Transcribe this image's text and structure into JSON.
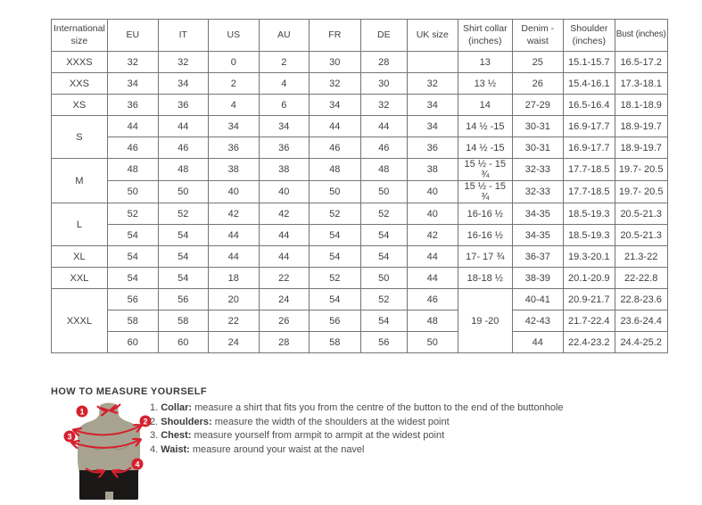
{
  "size_chart": {
    "columns": [
      "International size",
      "EU",
      "IT",
      "US",
      "AU",
      "FR",
      "DE",
      "UK size",
      "Shirt collar (inches)",
      "Denim - waist",
      "Shoulder (inches)",
      "Bust (inches)"
    ],
    "groups": [
      {
        "size": "XXXS",
        "rows": [
          [
            "32",
            "32",
            "0",
            "2",
            "30",
            "28",
            "",
            "13",
            "25",
            "15.1-15.7",
            "16.5-17.2"
          ]
        ]
      },
      {
        "size": "XXS",
        "rows": [
          [
            "34",
            "34",
            "2",
            "4",
            "32",
            "30",
            "32",
            "13 ½",
            "26",
            "15.4-16.1",
            "17.3-18.1"
          ]
        ]
      },
      {
        "size": "XS",
        "rows": [
          [
            "36",
            "36",
            "4",
            "6",
            "34",
            "32",
            "34",
            "14",
            "27-29",
            "16.5-16.4",
            "18.1-18.9"
          ]
        ]
      },
      {
        "size": "S",
        "rows": [
          [
            "44",
            "44",
            "34",
            "34",
            "44",
            "44",
            "34",
            "14 ½ -15",
            "30-31",
            "16.9-17.7",
            "18.9-19.7"
          ],
          [
            "46",
            "46",
            "36",
            "36",
            "46",
            "46",
            "36",
            "14 ½ -15",
            "30-31",
            "16.9-17.7",
            "18.9-19.7"
          ]
        ]
      },
      {
        "size": "M",
        "rows": [
          [
            "48",
            "48",
            "38",
            "38",
            "48",
            "48",
            "38",
            "15 ½ - 15 ¾",
            "32-33",
            "17.7-18.5",
            "19.7- 20.5"
          ],
          [
            "50",
            "50",
            "40",
            "40",
            "50",
            "50",
            "40",
            "15 ½ - 15 ¾",
            "32-33",
            "17.7-18.5",
            "19.7- 20.5"
          ]
        ]
      },
      {
        "size": "L",
        "rows": [
          [
            "52",
            "52",
            "42",
            "42",
            "52",
            "52",
            "40",
            "16-16 ½",
            "34-35",
            "18.5-19.3",
            "20.5-21.3"
          ],
          [
            "54",
            "54",
            "44",
            "44",
            "54",
            "54",
            "42",
            "16-16 ½",
            "34-35",
            "18.5-19.3",
            "20.5-21.3"
          ]
        ]
      },
      {
        "size": "XL",
        "rows": [
          [
            "54",
            "54",
            "44",
            "44",
            "54",
            "54",
            "44",
            "17- 17 ¾",
            "36-37",
            "19.3-20.1",
            "21.3-22"
          ]
        ]
      },
      {
        "size": "XXL",
        "rows": [
          [
            "54",
            "54",
            "18",
            "22",
            "52",
            "50",
            "44",
            "18-18 ½",
            "38-39",
            "20.1-20.9",
            "22-22.8"
          ]
        ]
      },
      {
        "size": "XXXL",
        "collar_merged": "19 -20",
        "rows": [
          [
            "56",
            "56",
            "20",
            "24",
            "54",
            "52",
            "46",
            "40-41",
            "20.9-21.7",
            "22.8-23.6"
          ],
          [
            "58",
            "58",
            "22",
            "26",
            "56",
            "54",
            "48",
            "42-43",
            "21.7-22.4",
            "23.6-24.4"
          ],
          [
            "60",
            "60",
            "24",
            "28",
            "58",
            "56",
            "50",
            "44",
            "22.4-23.2",
            "24.4-25.2"
          ]
        ]
      }
    ]
  },
  "measure_guide": {
    "heading": "HOW TO MEASURE YOURSELF",
    "steps": [
      {
        "num": "1.",
        "label": "Collar:",
        "text": "measure a shirt that fits you from the centre of the button to the end of the buttonhole"
      },
      {
        "num": "2.",
        "label": "Shoulders:",
        "text": "measure the width of the shoulders at the widest point"
      },
      {
        "num": "3.",
        "label": "Chest:",
        "text": "measure yourself from armpit to armpit at the widest point"
      },
      {
        "num": "4.",
        "label": "Waist:",
        "text": "measure around your waist at the navel"
      }
    ],
    "figure_badges": [
      "1",
      "2",
      "3",
      "4"
    ],
    "colors": {
      "accent_red": "#d6202e",
      "mannequin": "#a8a390",
      "shorts": "#1b1917"
    }
  }
}
